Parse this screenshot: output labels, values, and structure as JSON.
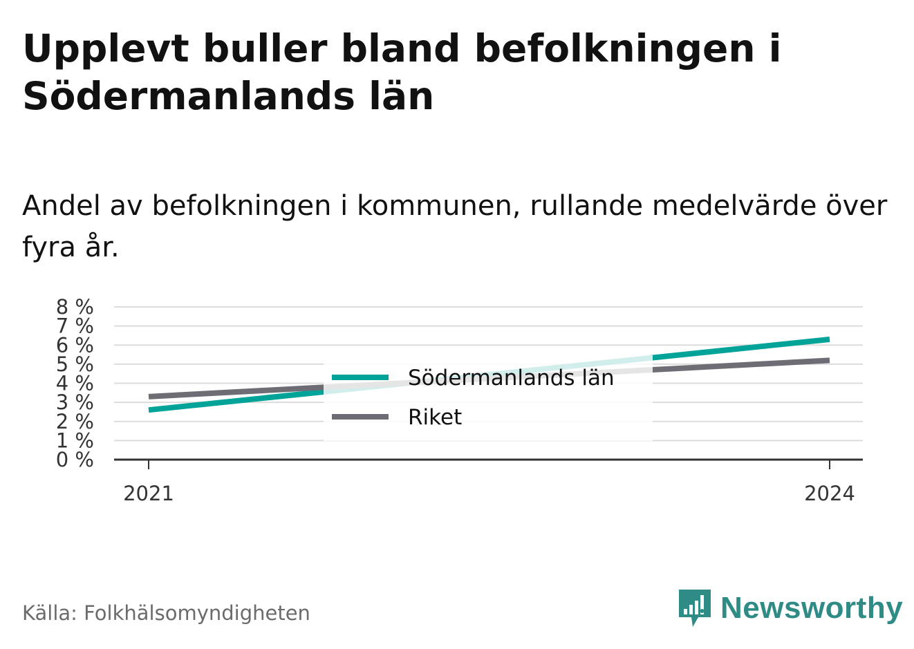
{
  "title": "Upplevt buller bland befolkningen i Södermanlands län",
  "subtitle": "Andel av befolkningen i kommunen, rullande medelvärde över fyra år.",
  "source": "Källa: Folkhälsomyndigheten",
  "brand": {
    "name": "Newsworthy",
    "icon": "newsworthy-logo-icon",
    "color": "#2f8b85"
  },
  "chart_data": {
    "type": "line",
    "x": [
      "2021",
      "2024"
    ],
    "ylim": [
      0,
      8
    ],
    "yticks": [
      "0 %",
      "1 %",
      "2 %",
      "3 %",
      "4 %",
      "5 %",
      "6 %",
      "7 %",
      "8 %"
    ],
    "grid": true,
    "legend_position": "center",
    "series": [
      {
        "name": "Södermanlands län",
        "values": [
          2.6,
          6.3
        ],
        "color": "#00a398"
      },
      {
        "name": "Riket",
        "values": [
          3.3,
          5.2
        ],
        "color": "#6e6d76"
      }
    ]
  }
}
